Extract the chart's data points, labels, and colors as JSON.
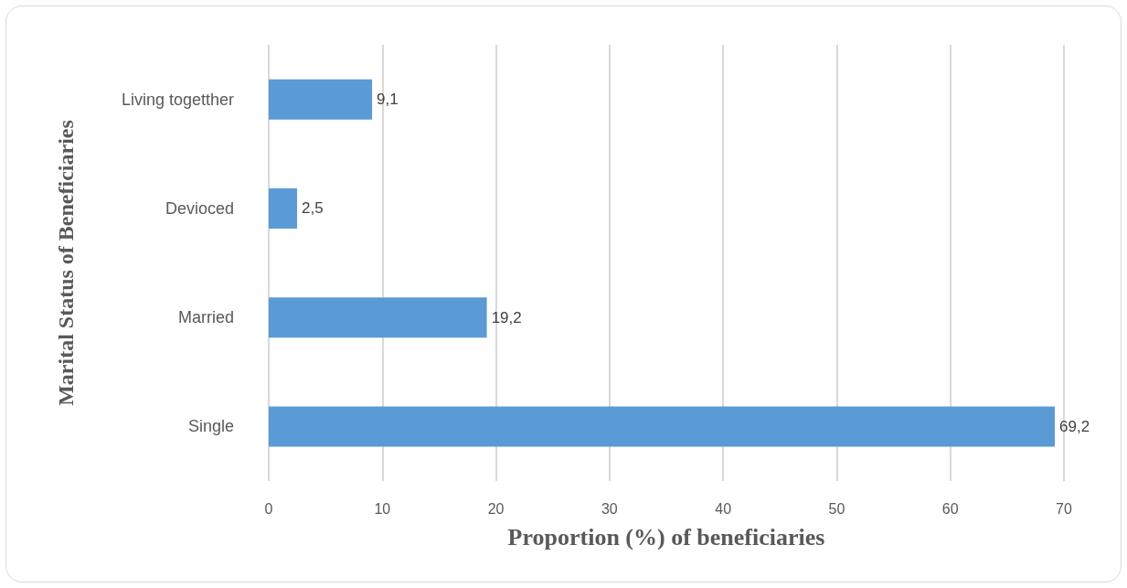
{
  "chart_data": {
    "type": "bar",
    "orientation": "horizontal",
    "xlabel": "Proportion (%) of beneficiaries",
    "ylabel": "Marital Status of Beneficiaries",
    "categories": [
      "Living togetther",
      "Devioced",
      "Married",
      "Single"
    ],
    "values": [
      9.1,
      2.5,
      19.2,
      69.2
    ],
    "value_labels": [
      "9,1",
      "2,5",
      "19,2",
      "69,2"
    ],
    "color": "#5b9bd5",
    "xlim": [
      0,
      70
    ],
    "xticks": [
      0,
      10,
      20,
      30,
      40,
      50,
      60,
      70
    ],
    "grid": "x"
  }
}
